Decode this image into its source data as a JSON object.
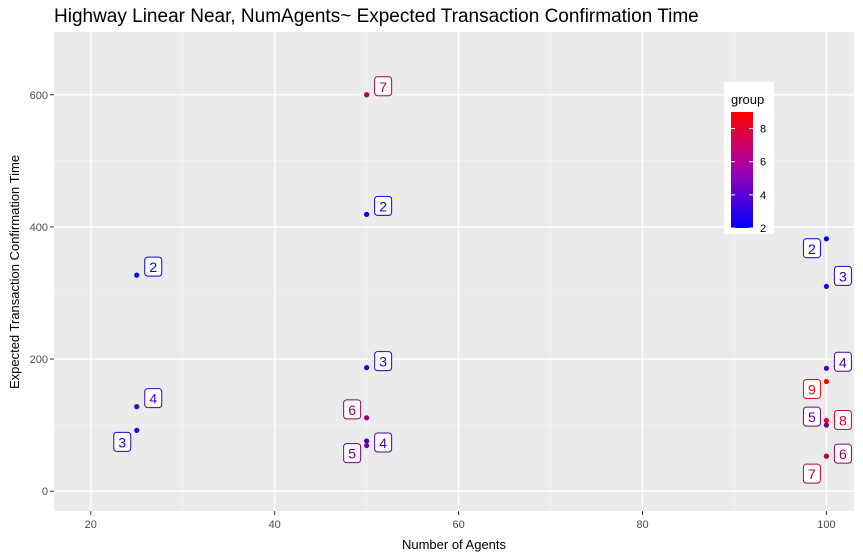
{
  "chart_data": {
    "type": "scatter",
    "title": "Highway Linear Near,  NumAgents~ Expected Transaction Confirmation Time",
    "xlabel": "Number of Agents",
    "ylabel": "Expected Transaction Confirmation Time",
    "xlim": [
      16,
      103
    ],
    "ylim": [
      -30,
      695
    ],
    "xticks": [
      20,
      40,
      60,
      80,
      100
    ],
    "yticks": [
      0,
      200,
      400,
      600
    ],
    "grid": true,
    "legend": {
      "title": "group",
      "placement": "right-inside-top",
      "colorbar_min": 2,
      "colorbar_max": 9,
      "ticks": [
        2,
        4,
        6,
        8
      ],
      "color_low": "#0000ff",
      "color_high": "#ff0000"
    },
    "points": [
      {
        "x": 25,
        "y": 327,
        "group": 2,
        "label": "2"
      },
      {
        "x": 25,
        "y": 92,
        "group": 3,
        "label": "3"
      },
      {
        "x": 25,
        "y": 128,
        "group": 4,
        "label": "4"
      },
      {
        "x": 50,
        "y": 419,
        "group": 2,
        "label": "2"
      },
      {
        "x": 50,
        "y": 187,
        "group": 3,
        "label": "3"
      },
      {
        "x": 50,
        "y": 76,
        "group": 4,
        "label": "4"
      },
      {
        "x": 50,
        "y": 69,
        "group": 5,
        "label": "5"
      },
      {
        "x": 50,
        "y": 111,
        "group": 6,
        "label": "6"
      },
      {
        "x": 50,
        "y": 600,
        "group": 7,
        "label": "7"
      },
      {
        "x": 100,
        "y": 382,
        "group": 2,
        "label": "2"
      },
      {
        "x": 100,
        "y": 310,
        "group": 3,
        "label": "3"
      },
      {
        "x": 100,
        "y": 186,
        "group": 4,
        "label": "4"
      },
      {
        "x": 100,
        "y": 100,
        "group": 5,
        "label": "5"
      },
      {
        "x": 100,
        "y": 53,
        "group": 6,
        "label": "6"
      },
      {
        "x": 100,
        "y": 53,
        "group": 7,
        "label": "7"
      },
      {
        "x": 100,
        "y": 107,
        "group": 8,
        "label": "8"
      },
      {
        "x": 100,
        "y": 166,
        "group": 9,
        "label": "9"
      }
    ]
  }
}
